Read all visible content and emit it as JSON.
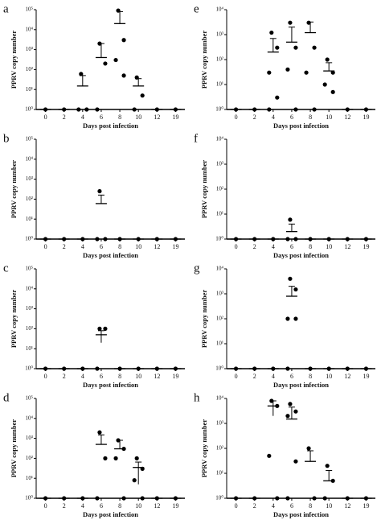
{
  "chart_data": [
    {
      "type": "dot",
      "title": "a",
      "y_label": "PPRV copy number",
      "x_label": "Days post infection",
      "log_y": true,
      "categories": [
        "0",
        "2",
        "4",
        "6",
        "8",
        "10",
        "12",
        "19"
      ],
      "points": [
        [
          1
        ],
        [
          1
        ],
        [
          60,
          1,
          1
        ],
        [
          2000,
          200,
          1
        ],
        [
          90000,
          3000,
          300,
          50
        ],
        [
          40,
          5,
          1
        ],
        [
          1
        ],
        [
          1
        ]
      ],
      "mean": [
        1,
        1,
        15,
        400,
        20000,
        15,
        1,
        1
      ],
      "error": [
        null,
        null,
        35,
        1600,
        60000,
        20,
        null,
        null
      ],
      "ylim": [
        1,
        100000
      ],
      "yticks": [
        {
          "value": 1,
          "label": "10⁰"
        },
        {
          "value": 10,
          "label": "10¹"
        },
        {
          "value": 100,
          "label": "10²"
        },
        {
          "value": 1000,
          "label": "10³"
        },
        {
          "value": 10000,
          "label": "10⁴"
        },
        {
          "value": 100000,
          "label": "10⁵"
        }
      ]
    },
    {
      "type": "dot",
      "title": "b",
      "y_label": "PPRV copy number",
      "x_label": "Days post infection",
      "log_y": true,
      "categories": [
        "0",
        "2",
        "4",
        "6",
        "8",
        "10",
        "12",
        "19"
      ],
      "points": [
        [
          1
        ],
        [
          1
        ],
        [
          1
        ],
        [
          250,
          1,
          1
        ],
        [
          1
        ],
        [
          1
        ],
        [
          1
        ],
        [
          1
        ]
      ],
      "mean": [
        1,
        1,
        1,
        60,
        1,
        1,
        1,
        1
      ],
      "error": [
        null,
        null,
        null,
        100,
        null,
        null,
        null,
        null
      ],
      "ylim": [
        1,
        100000
      ],
      "yticks": [
        {
          "value": 1,
          "label": "10⁰"
        },
        {
          "value": 10,
          "label": "10¹"
        },
        {
          "value": 100,
          "label": "10²"
        },
        {
          "value": 1000,
          "label": "10³"
        },
        {
          "value": 10000,
          "label": "10⁴"
        },
        {
          "value": 100000,
          "label": "10⁵"
        }
      ]
    },
    {
      "type": "dot",
      "title": "c",
      "y_label": "PPRV copy number",
      "x_label": "Days post infection",
      "log_y": true,
      "categories": [
        "0",
        "2",
        "4",
        "6",
        "8",
        "10",
        "12",
        "19"
      ],
      "points": [
        [
          1
        ],
        [
          1
        ],
        [
          1
        ],
        [
          100,
          100,
          1
        ],
        [
          1
        ],
        [
          1
        ],
        [
          1
        ],
        [
          1
        ]
      ],
      "mean": [
        1,
        1,
        1,
        50,
        1,
        1,
        1,
        1
      ],
      "error": [
        null,
        null,
        null,
        30,
        null,
        null,
        null,
        null
      ],
      "ylim": [
        1,
        100000
      ],
      "yticks": [
        {
          "value": 1,
          "label": "10⁰"
        },
        {
          "value": 10,
          "label": "10¹"
        },
        {
          "value": 100,
          "label": "10²"
        },
        {
          "value": 1000,
          "label": "10³"
        },
        {
          "value": 10000,
          "label": "10⁴"
        },
        {
          "value": 100000,
          "label": "10⁵"
        }
      ]
    },
    {
      "type": "dot",
      "title": "d",
      "y_label": "PPRV copy number",
      "x_label": "Days post infection",
      "log_y": true,
      "categories": [
        "0",
        "2",
        "4",
        "6",
        "8",
        "10",
        "12",
        "19"
      ],
      "points": [
        [
          1
        ],
        [
          1
        ],
        [
          1
        ],
        [
          2000,
          100,
          1
        ],
        [
          800,
          300,
          100,
          1
        ],
        [
          100,
          30,
          8,
          1
        ],
        [
          1
        ],
        [
          1
        ]
      ],
      "mean": [
        1,
        1,
        1,
        500,
        300,
        35,
        1,
        1
      ],
      "error": [
        null,
        null,
        null,
        1000,
        500,
        30,
        null,
        null
      ],
      "ylim": [
        1,
        100000
      ],
      "yticks": [
        {
          "value": 1,
          "label": "10⁰"
        },
        {
          "value": 10,
          "label": "10¹"
        },
        {
          "value": 100,
          "label": "10²"
        },
        {
          "value": 1000,
          "label": "10³"
        },
        {
          "value": 10000,
          "label": "10⁴"
        },
        {
          "value": 100000,
          "label": "10⁵"
        }
      ]
    },
    {
      "type": "dot",
      "title": "e",
      "y_label": "PPRV copy number",
      "x_label": "Days post infection",
      "log_y": true,
      "categories": [
        "0",
        "2",
        "4",
        "6",
        "8",
        "10",
        "12",
        "19"
      ],
      "points": [
        [
          1
        ],
        [
          1
        ],
        [
          1200,
          300,
          30,
          3,
          1
        ],
        [
          3000,
          300,
          40,
          1
        ],
        [
          3000,
          300,
          30,
          1
        ],
        [
          100,
          30,
          10,
          5
        ],
        [
          1
        ],
        [
          1
        ]
      ],
      "mean": [
        1,
        1,
        200,
        500,
        1200,
        35,
        1,
        1
      ],
      "error": [
        null,
        null,
        500,
        1500,
        2000,
        40,
        null,
        null
      ],
      "ylim": [
        1,
        10000
      ],
      "yticks": [
        {
          "value": 1,
          "label": "10⁰"
        },
        {
          "value": 10,
          "label": "10¹"
        },
        {
          "value": 100,
          "label": "10²"
        },
        {
          "value": 1000,
          "label": "10³"
        },
        {
          "value": 10000,
          "label": "10⁴"
        }
      ]
    },
    {
      "type": "dot",
      "title": "f",
      "y_label": "PPRV copy number",
      "x_label": "Days post infection",
      "log_y": true,
      "categories": [
        "0",
        "2",
        "4",
        "6",
        "8",
        "10",
        "12",
        "19"
      ],
      "points": [
        [
          1
        ],
        [
          1
        ],
        [
          1
        ],
        [
          6,
          1,
          1
        ],
        [
          1
        ],
        [
          1
        ],
        [
          1
        ],
        [
          1
        ]
      ],
      "mean": [
        1,
        1,
        1,
        2,
        1,
        1,
        1,
        1
      ],
      "error": [
        null,
        null,
        null,
        2,
        null,
        null,
        null,
        null
      ],
      "ylim": [
        1,
        10000
      ],
      "yticks": [
        {
          "value": 1,
          "label": "10⁰"
        },
        {
          "value": 10,
          "label": "10¹"
        },
        {
          "value": 100,
          "label": "10²"
        },
        {
          "value": 1000,
          "label": "10³"
        },
        {
          "value": 10000,
          "label": "10⁴"
        }
      ]
    },
    {
      "type": "dot",
      "title": "g",
      "y_label": "PPRV copy number",
      "x_label": "Days post infection",
      "log_y": true,
      "categories": [
        "0",
        "2",
        "4",
        "6",
        "8",
        "10",
        "12",
        "19"
      ],
      "points": [
        [
          1
        ],
        [
          1
        ],
        [
          1
        ],
        [
          4000,
          1500,
          100,
          100,
          1
        ],
        [
          1
        ],
        [
          1
        ],
        [
          1
        ],
        [
          1
        ]
      ],
      "mean": [
        1,
        1,
        1,
        800,
        1,
        1,
        1,
        1
      ],
      "error": [
        null,
        null,
        null,
        1200,
        null,
        null,
        null,
        null
      ],
      "ylim": [
        1,
        10000
      ],
      "yticks": [
        {
          "value": 1,
          "label": "10⁰"
        },
        {
          "value": 10,
          "label": "10¹"
        },
        {
          "value": 100,
          "label": "10²"
        },
        {
          "value": 1000,
          "label": "10³"
        },
        {
          "value": 10000,
          "label": "10⁴"
        }
      ]
    },
    {
      "type": "dot",
      "title": "h",
      "y_label": "PPRV copy number",
      "x_label": "Days post infection",
      "log_y": true,
      "categories": [
        "0",
        "2",
        "4",
        "6",
        "8",
        "10",
        "12",
        "19"
      ],
      "points": [
        [
          1
        ],
        [
          1
        ],
        [
          8000,
          5000,
          50,
          1
        ],
        [
          6000,
          3000,
          2000,
          30,
          1
        ],
        [
          100,
          1
        ],
        [
          20,
          5,
          1
        ],
        [
          1
        ],
        [
          1
        ]
      ],
      "mean": [
        1,
        1,
        5000,
        1500,
        30,
        5,
        1,
        1
      ],
      "error": [
        null,
        null,
        3000,
        3000,
        50,
        8,
        null,
        null
      ],
      "ylim": [
        1,
        10000
      ],
      "yticks": [
        {
          "value": 1,
          "label": "10⁰"
        },
        {
          "value": 10,
          "label": "10¹"
        },
        {
          "value": 100,
          "label": "10²"
        },
        {
          "value": 1000,
          "label": "10³"
        },
        {
          "value": 10000,
          "label": "10⁴"
        }
      ]
    }
  ]
}
